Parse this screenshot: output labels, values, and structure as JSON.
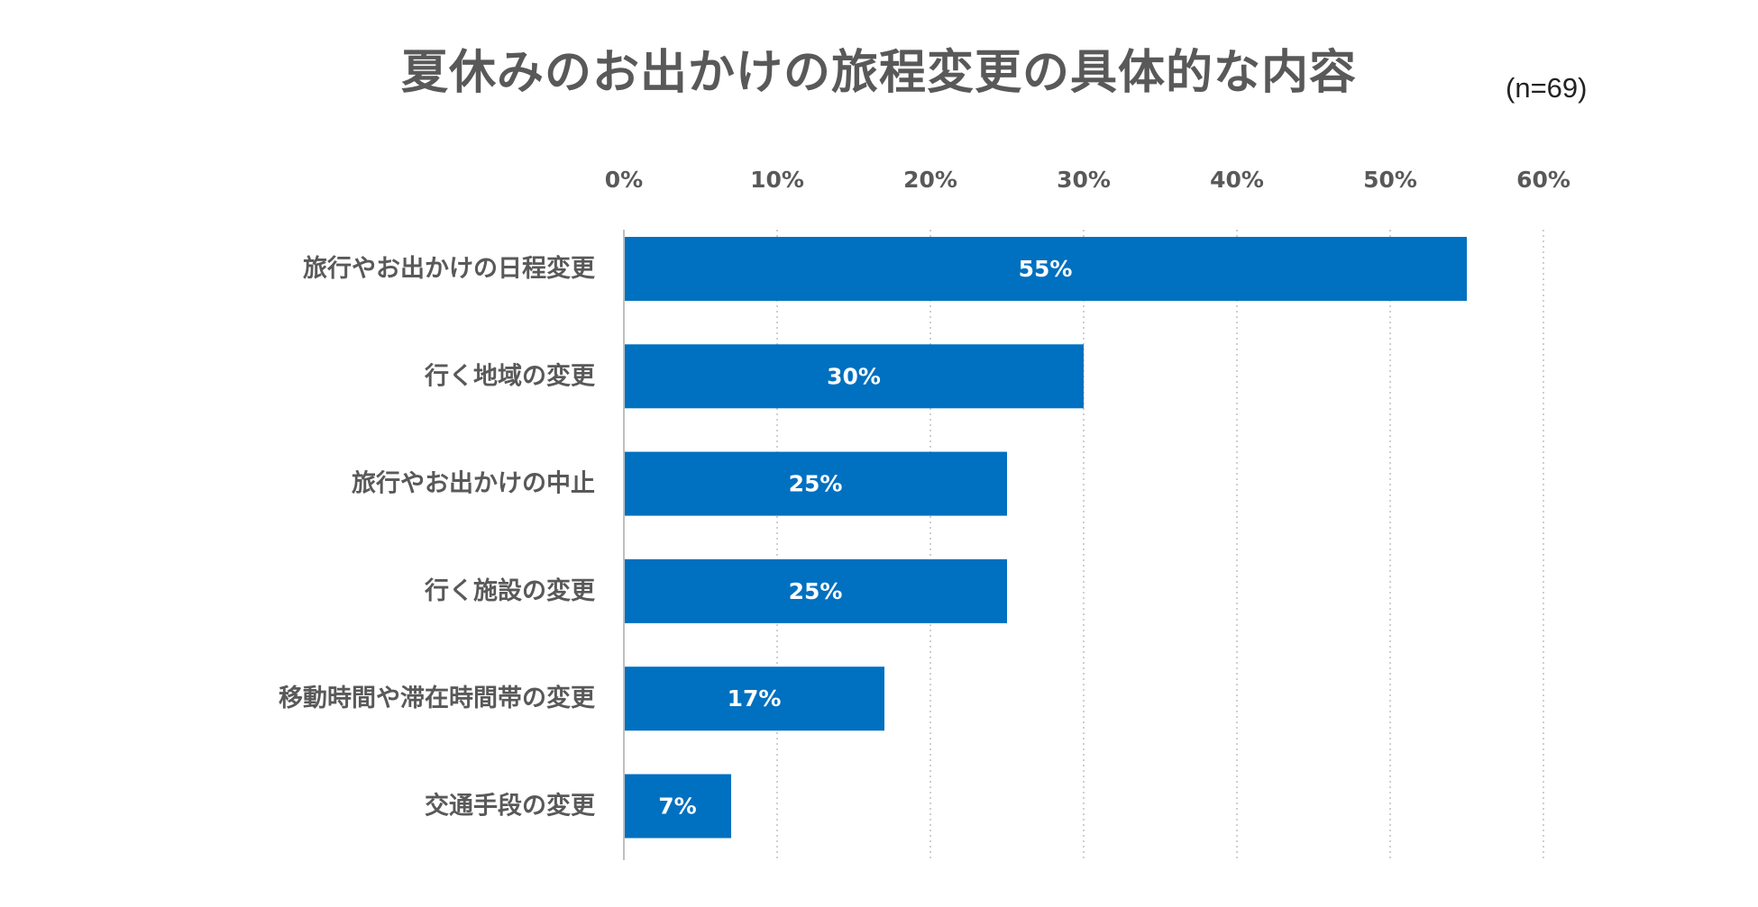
{
  "chart_data": {
    "type": "bar",
    "orientation": "horizontal",
    "title": "夏休みのお出かけの旅程変更の具体的な内容",
    "note": "(n=69)",
    "categories": [
      "旅行やお出かけの日程変更",
      "行く地域の変更",
      "旅行やお出かけの中止",
      "行く施設の変更",
      "移動時間や滞在時間帯の変更",
      "交通手段の変更"
    ],
    "values": [
      55,
      30,
      25,
      25,
      17,
      7
    ],
    "labels": [
      "55%",
      "30%",
      "25%",
      "25%",
      "17%",
      "7%"
    ],
    "xlim": [
      0,
      60
    ],
    "xticks": [
      0,
      10,
      20,
      30,
      40,
      50,
      60
    ],
    "xtick_labels": [
      "0%",
      "10%",
      "20%",
      "30%",
      "40%",
      "50%",
      "60%"
    ],
    "xaxis_position": "top",
    "grid": "vertical-dotted",
    "bar_color": "#0070C0",
    "label_color": "#FFFFFF",
    "text_color": "#595959"
  }
}
